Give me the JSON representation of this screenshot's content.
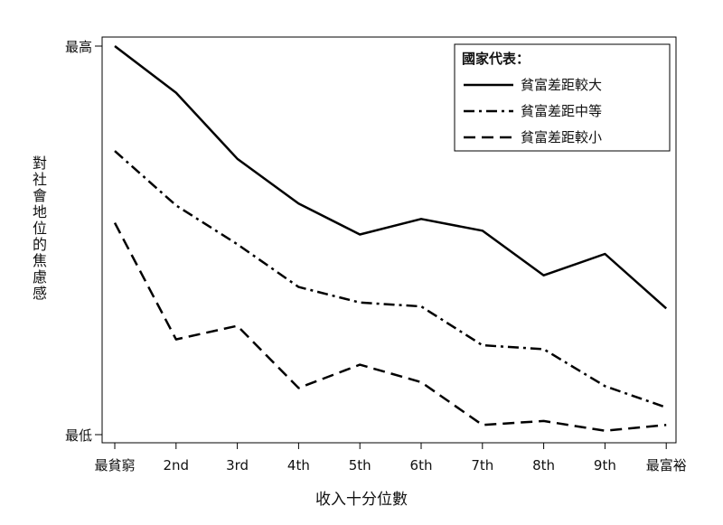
{
  "chart_data": {
    "type": "line",
    "xlabel": "收入十分位數",
    "ylabel": "對社會地位的焦慮感",
    "categories": [
      "最貧窮",
      "2nd",
      "3rd",
      "4th",
      "5th",
      "6th",
      "7th",
      "8th",
      "9th",
      "最富裕"
    ],
    "ytick_labels": [
      "最低",
      "最高"
    ],
    "ylim": [
      0,
      100
    ],
    "grid": false,
    "legend": {
      "title": "國家代表：",
      "position": "top-right"
    },
    "series": [
      {
        "name": "貧富差距較大",
        "style": "solid",
        "values": [
          100,
          88,
          71,
          59.5,
          51.5,
          55.5,
          52.5,
          41,
          46.5,
          32.5
        ]
      },
      {
        "name": "貧富差距中等",
        "style": "dashdot",
        "values": [
          73,
          59,
          49,
          38,
          34,
          33,
          23,
          22,
          12.5,
          7
        ]
      },
      {
        "name": "貧富差距較小",
        "style": "dashed",
        "values": [
          54.5,
          24.5,
          28,
          12,
          18,
          13.5,
          2.5,
          3.5,
          1,
          2.5
        ]
      }
    ]
  }
}
